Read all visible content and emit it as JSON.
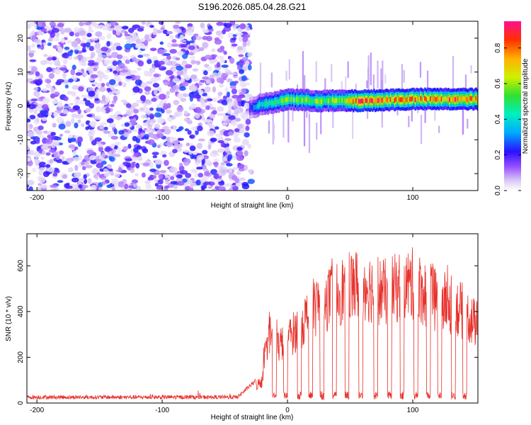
{
  "chart_data": [
    {
      "type": "heatmap",
      "title": "S196.2026.085.04.28.G21",
      "xlabel": "Height of straight line (km)",
      "ylabel": "Frequency (Hz)",
      "xlim": [
        -208,
        152
      ],
      "ylim": [
        -25,
        25
      ],
      "xticks": [
        -200,
        -100,
        0,
        100
      ],
      "yticks": [
        -20,
        -10,
        0,
        10,
        20
      ],
      "colorbar": {
        "label": "Normalized spectral amplitude",
        "range": [
          0.0,
          0.95
        ],
        "ticks": [
          0.0,
          0.2,
          0.4,
          0.6,
          0.8
        ]
      },
      "noise_region": {
        "x_from": -208,
        "x_to": -30
      },
      "signal_band": {
        "x_from": -30,
        "x_to": 152,
        "center_freq_points": [
          [
            -30,
            -0.8
          ],
          [
            -20,
            0.5
          ],
          [
            -10,
            1.0
          ],
          [
            0,
            2.0
          ],
          [
            20,
            1.5
          ],
          [
            60,
            1.5
          ],
          [
            100,
            2.0
          ],
          [
            152,
            2.0
          ]
        ],
        "strength_points": [
          [
            -30,
            0.25
          ],
          [
            -20,
            0.5
          ],
          [
            0,
            0.6
          ],
          [
            40,
            0.65
          ],
          [
            55,
            0.9
          ],
          [
            80,
            0.9
          ],
          [
            100,
            0.85
          ],
          [
            152,
            0.9
          ]
        ]
      }
    },
    {
      "type": "line",
      "xlabel": "Height of straight line (km)",
      "ylabel": "SNR (10 * v/v)",
      "xlim": [
        -208,
        152
      ],
      "ylim": [
        0,
        740
      ],
      "xticks": [
        -200,
        -100,
        0,
        100
      ],
      "yticks": [
        0,
        200,
        400,
        600
      ],
      "series": [
        {
          "name": "SNR",
          "color": "#e8302a",
          "envelope": [
            [
              -208,
              22
            ],
            [
              -40,
              22
            ],
            [
              -20,
              120
            ],
            [
              -15,
              400
            ],
            [
              -10,
              300
            ],
            [
              0,
              350
            ],
            [
              10,
              420
            ],
            [
              20,
              520
            ],
            [
              30,
              560
            ],
            [
              40,
              600
            ],
            [
              50,
              640
            ],
            [
              60,
              650
            ],
            [
              70,
              620
            ],
            [
              80,
              600
            ],
            [
              90,
              640
            ],
            [
              100,
              650
            ],
            [
              110,
              600
            ],
            [
              120,
              560
            ],
            [
              130,
              540
            ],
            [
              140,
              500
            ],
            [
              152,
              420
            ]
          ],
          "dropouts": [
            [
              -12,
              -9
            ],
            [
              -3,
              0
            ],
            [
              8,
              11
            ],
            [
              17,
              20
            ],
            [
              26,
              29
            ],
            [
              36,
              39
            ],
            [
              46,
              49
            ],
            [
              57,
              60
            ],
            [
              69,
              72
            ],
            [
              80,
              83
            ],
            [
              90,
              93
            ],
            [
              101,
              104
            ],
            [
              111,
              114
            ],
            [
              120,
              123
            ],
            [
              131,
              134
            ],
            [
              140,
              143
            ]
          ]
        }
      ]
    }
  ]
}
